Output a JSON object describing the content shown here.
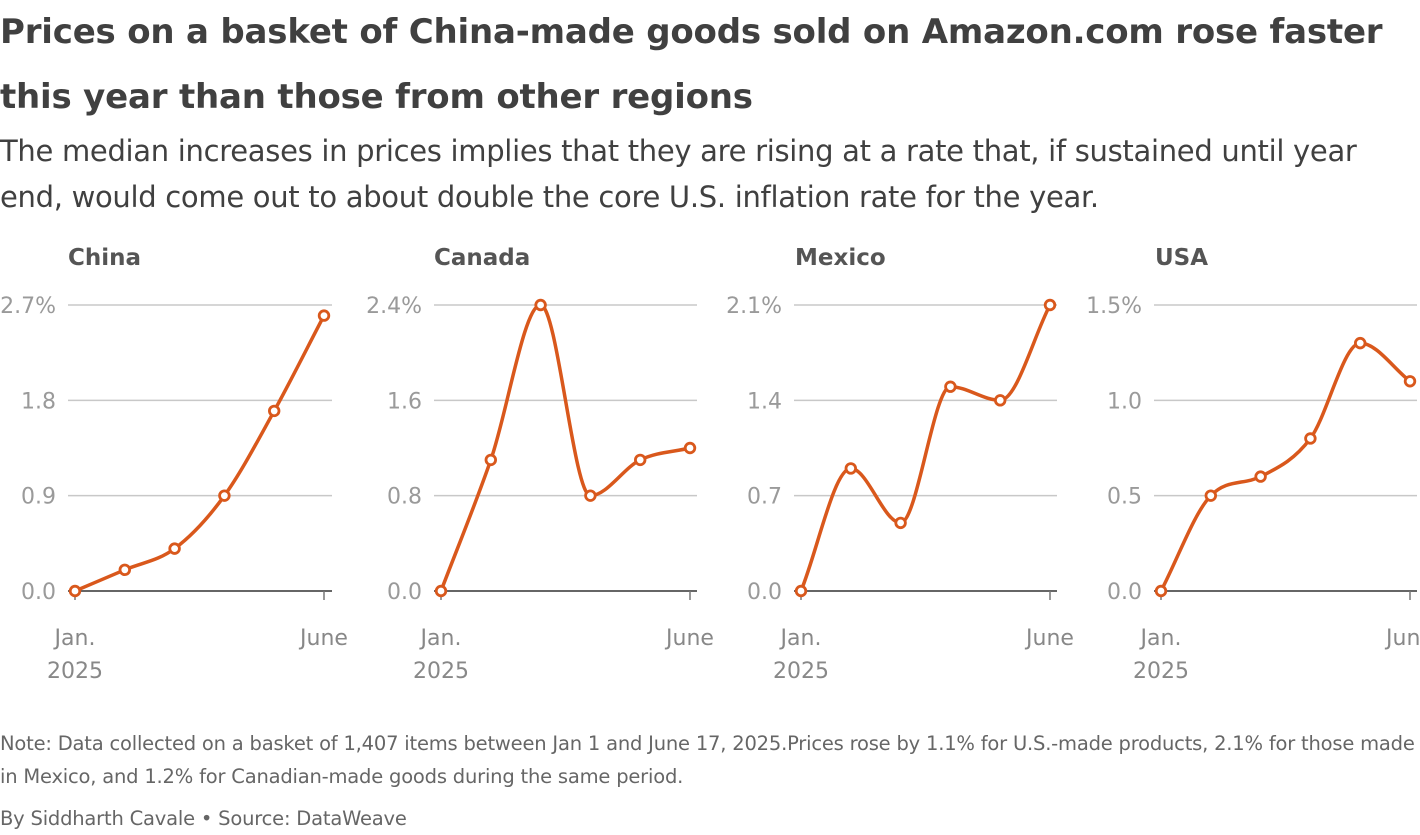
{
  "title": "Prices on a basket of China-made goods sold on Amazon.com rose faster this year than those from other regions",
  "subtitle": "The median increases in prices implies that they are rising at a rate that, if sustained until year end, would come out to about double the core U.S. inflation rate for the year.",
  "note": "Note: Data collected on a basket of 1,407 items between Jan 1 and June 17, 2025.Prices rose by 1.1% for U.S.-made products, 2.1% for those made in Mexico, and 1.2% for Canadian-made goods during the same period.",
  "byline": "By Siddharth Cavale • Source: DataWeave",
  "colors": {
    "line": "#d9581c",
    "grid": "#c8c8c8",
    "baseline": "#333333",
    "marker_fill": "#ffffff"
  },
  "chart_data": [
    {
      "type": "line",
      "title": "China",
      "x": [
        0,
        1,
        2,
        3,
        4,
        5
      ],
      "values": [
        0.0,
        0.2,
        0.4,
        0.9,
        1.7,
        2.6
      ],
      "ylim": [
        0,
        2.7
      ],
      "yticks": [
        0.0,
        0.9,
        1.8,
        2.7
      ],
      "ytick_labels": [
        "0.0",
        "0.9",
        "1.8",
        "2.7%"
      ],
      "x_tick_labels": {
        "start_line1": "Jan.",
        "start_line2": "2025",
        "end": "June"
      }
    },
    {
      "type": "line",
      "title": "Canada",
      "x": [
        0,
        1,
        2,
        3,
        4,
        5
      ],
      "values": [
        0.0,
        1.1,
        2.4,
        0.8,
        1.1,
        1.2
      ],
      "ylim": [
        0,
        2.4
      ],
      "yticks": [
        0.0,
        0.8,
        1.6,
        2.4
      ],
      "ytick_labels": [
        "0.0",
        "0.8",
        "1.6",
        "2.4%"
      ],
      "x_tick_labels": {
        "start_line1": "Jan.",
        "start_line2": "2025",
        "end": "June"
      }
    },
    {
      "type": "line",
      "title": "Mexico",
      "x": [
        0,
        1,
        2,
        3,
        4,
        5
      ],
      "values": [
        0.0,
        0.9,
        0.5,
        1.5,
        1.4,
        2.1
      ],
      "ylim": [
        0,
        2.1
      ],
      "yticks": [
        0.0,
        0.7,
        1.4,
        2.1
      ],
      "ytick_labels": [
        "0.0",
        "0.7",
        "1.4",
        "2.1%"
      ],
      "x_tick_labels": {
        "start_line1": "Jan.",
        "start_line2": "2025",
        "end": "June"
      }
    },
    {
      "type": "line",
      "title": "USA",
      "x": [
        0,
        1,
        2,
        3,
        4,
        5
      ],
      "values": [
        0.0,
        0.5,
        0.6,
        0.8,
        1.3,
        1.1
      ],
      "ylim": [
        0,
        1.5
      ],
      "yticks": [
        0.0,
        0.5,
        1.0,
        1.5
      ],
      "ytick_labels": [
        "0.0",
        "0.5",
        "1.0",
        "1.5%"
      ],
      "x_tick_labels": {
        "start_line1": "Jan.",
        "start_line2": "2025",
        "end": "June"
      }
    }
  ]
}
